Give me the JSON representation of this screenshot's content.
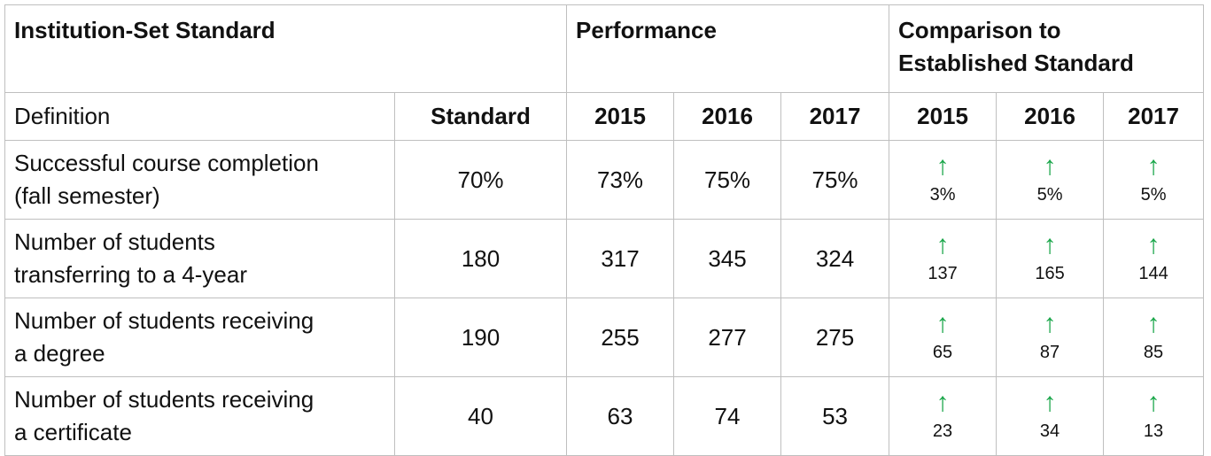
{
  "header": {
    "institution_set_standard": "Institution-Set Standard",
    "performance": "Performance",
    "comparison_line1": "Comparison to",
    "comparison_line2": "Established Standard"
  },
  "subheader": {
    "definition": "Definition",
    "standard": "Standard",
    "perf_years": [
      "2015",
      "2016",
      "2017"
    ],
    "cmp_years": [
      "2015",
      "2016",
      "2017"
    ]
  },
  "arrow_color": "#1aa64a",
  "arrow_icon": "up-arrow",
  "rows": [
    {
      "label_line1": "Successful course completion",
      "label_line2": "(fall semester)",
      "standard": "70%",
      "perf": [
        "73%",
        "75%",
        "75%"
      ],
      "cmp": [
        "3%",
        "5%",
        "5%"
      ]
    },
    {
      "label_line1": "Number of students",
      "label_line2": "transferring to a 4-year",
      "standard": "180",
      "perf": [
        "317",
        "345",
        "324"
      ],
      "cmp": [
        "137",
        "165",
        "144"
      ]
    },
    {
      "label_line1": "Number of students receiving",
      "label_line2": "a degree",
      "standard": "190",
      "perf": [
        "255",
        "277",
        "275"
      ],
      "cmp": [
        "65",
        "87",
        "85"
      ]
    },
    {
      "label_line1": "Number of students receiving",
      "label_line2": "a certificate",
      "standard": "40",
      "perf": [
        "63",
        "74",
        "53"
      ],
      "cmp": [
        "23",
        "34",
        "13"
      ]
    }
  ]
}
